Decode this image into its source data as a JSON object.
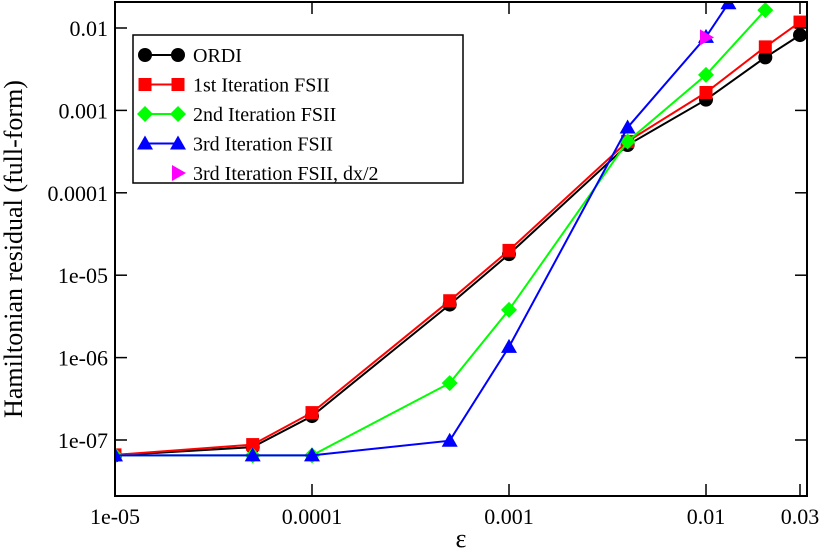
{
  "chart_data": {
    "type": "line",
    "title": "",
    "xlabel": "ε",
    "ylabel": "Hamiltonian residual (full-form)",
    "xscale": "log",
    "yscale": "log",
    "xlim": [
      1e-05,
      0.03
    ],
    "ylim": [
      2.5e-08,
      0.02
    ],
    "grid": false,
    "legend_position": "top-left",
    "x_ticks": [
      {
        "value": 1e-05,
        "label": "1e-05"
      },
      {
        "value": 0.0001,
        "label": "0.0001"
      },
      {
        "value": 0.001,
        "label": "0.001"
      },
      {
        "value": 0.01,
        "label": "0.01"
      },
      {
        "value": 0.03,
        "label": "0.03"
      }
    ],
    "y_ticks": [
      {
        "value": 1e-07,
        "label": "1e-07"
      },
      {
        "value": 1e-06,
        "label": "1e-06"
      },
      {
        "value": 1e-05,
        "label": "1e-05"
      },
      {
        "value": 0.0001,
        "label": "0.0001"
      },
      {
        "value": 0.001,
        "label": "0.001"
      },
      {
        "value": 0.01,
        "label": "0.01"
      }
    ],
    "series": [
      {
        "name": "ORDI",
        "color": "#000000",
        "marker": "circle",
        "line": true,
        "x": [
          1e-05,
          5e-05,
          0.0001,
          0.0005,
          0.001,
          0.004,
          0.01,
          0.02,
          0.03
        ],
        "y": [
          6.5e-08,
          8.2e-08,
          1.95e-07,
          4.4e-06,
          1.8e-05,
          0.00038,
          0.00135,
          0.0044,
          0.0082
        ]
      },
      {
        "name": "1st Iteration FSII",
        "color": "#ff0000",
        "marker": "square",
        "line": true,
        "x": [
          1e-05,
          5e-05,
          0.0001,
          0.0005,
          0.001,
          0.004,
          0.01,
          0.02,
          0.03
        ],
        "y": [
          6.6e-08,
          8.8e-08,
          2.15e-07,
          4.9e-06,
          2e-05,
          0.00042,
          0.00165,
          0.0059,
          0.0118
        ]
      },
      {
        "name": "2nd Iteration FSII",
        "color": "#00ff00",
        "marker": "diamond",
        "line": true,
        "x": [
          1e-05,
          5e-05,
          0.0001,
          0.0005,
          0.001,
          0.004,
          0.01,
          0.02
        ],
        "y": [
          6.5e-08,
          6.5e-08,
          6.5e-08,
          4.9e-07,
          3.8e-06,
          0.00042,
          0.0027,
          0.0165
        ]
      },
      {
        "name": "3rd Iteration FSII",
        "color": "#0000ff",
        "marker": "triangle-up",
        "line": true,
        "x": [
          1e-05,
          5e-05,
          0.0001,
          0.0005,
          0.001,
          0.004,
          0.01,
          0.013
        ],
        "y": [
          6.5e-08,
          6.5e-08,
          6.5e-08,
          9.8e-08,
          1.35e-06,
          0.00062,
          0.0078,
          0.02
        ]
      },
      {
        "name": "3rd Iteration FSII, dx/2",
        "color": "#ff00ff",
        "marker": "triangle-right",
        "line": false,
        "x": [
          0.01
        ],
        "y": [
          0.0077
        ]
      }
    ]
  }
}
